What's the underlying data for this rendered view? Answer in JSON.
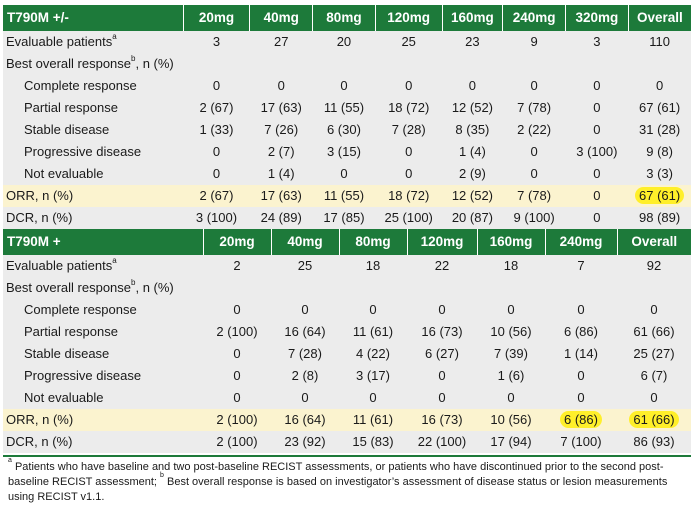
{
  "tables": [
    {
      "title": "T790M +/-",
      "doses": [
        "20mg",
        "40mg",
        "80mg",
        "120mg",
        "160mg",
        "240mg",
        "320mg",
        "Overall"
      ],
      "evaluable": {
        "label": "Evaluable patients",
        "note": "a",
        "values": [
          "3",
          "27",
          "20",
          "25",
          "23",
          "9",
          "3",
          "110"
        ]
      },
      "best_response": {
        "label_pre": "Best overall response",
        "note": "b",
        "label_post": ", n (%)"
      },
      "responses": [
        {
          "label": "Complete response",
          "values": [
            "0",
            "0",
            "0",
            "0",
            "0",
            "0",
            "0",
            "0"
          ]
        },
        {
          "label": "Partial response",
          "values": [
            "2 (67)",
            "17 (63)",
            "11 (55)",
            "18 (72)",
            "12 (52)",
            "7 (78)",
            "0",
            "67 (61)"
          ]
        },
        {
          "label": "Stable disease",
          "values": [
            "1 (33)",
            "7 (26)",
            "6 (30)",
            "7 (28)",
            "8 (35)",
            "2 (22)",
            "0",
            "31 (28)"
          ]
        },
        {
          "label": "Progressive disease",
          "values": [
            "0",
            "2 (7)",
            "3 (15)",
            "0",
            "1 (4)",
            "0",
            "3 (100)",
            "9 (8)"
          ]
        },
        {
          "label": "Not evaluable",
          "values": [
            "0",
            "1 (4)",
            "0",
            "0",
            "2 (9)",
            "0",
            "0",
            "3 (3)"
          ]
        }
      ],
      "orr": {
        "label": "ORR, n (%)",
        "values": [
          "2 (67)",
          "17 (63)",
          "11 (55)",
          "18 (72)",
          "12 (52)",
          "7 (78)",
          "0",
          "67 (61)"
        ],
        "highlighted": [
          false,
          false,
          false,
          false,
          false,
          false,
          false,
          true
        ]
      },
      "dcr": {
        "label": "DCR, n (%)",
        "values": [
          "3 (100)",
          "24 (89)",
          "17 (85)",
          "25 (100)",
          "20 (87)",
          "9 (100)",
          "0",
          "98 (89)"
        ]
      }
    },
    {
      "title": "T790M +",
      "doses": [
        "20mg",
        "40mg",
        "80mg",
        "120mg",
        "160mg",
        "240mg",
        "Overall"
      ],
      "evaluable": {
        "label": "Evaluable patients",
        "note": "a",
        "values": [
          "2",
          "25",
          "18",
          "22",
          "18",
          "7",
          "92"
        ]
      },
      "best_response": {
        "label_pre": "Best overall response",
        "note": "b",
        "label_post": ", n (%)"
      },
      "responses": [
        {
          "label": "Complete response",
          "values": [
            "0",
            "0",
            "0",
            "0",
            "0",
            "0",
            "0"
          ]
        },
        {
          "label": "Partial response",
          "values": [
            "2 (100)",
            "16 (64)",
            "11 (61)",
            "16 (73)",
            "10 (56)",
            "6 (86)",
            "61 (66)"
          ]
        },
        {
          "label": "Stable disease",
          "values": [
            "0",
            "7 (28)",
            "4 (22)",
            "6 (27)",
            "7 (39)",
            "1 (14)",
            "25 (27)"
          ]
        },
        {
          "label": "Progressive disease",
          "values": [
            "0",
            "2 (8)",
            "3 (17)",
            "0",
            "1 (6)",
            "0",
            "6 (7)"
          ]
        },
        {
          "label": "Not evaluable",
          "values": [
            "0",
            "0",
            "0",
            "0",
            "0",
            "0",
            "0"
          ]
        }
      ],
      "orr": {
        "label": "ORR, n (%)",
        "values": [
          "2 (100)",
          "16 (64)",
          "11 (61)",
          "16 (73)",
          "10 (56)",
          "6 (86)",
          "61 (66)"
        ],
        "highlighted": [
          false,
          false,
          false,
          false,
          false,
          true,
          true
        ]
      },
      "dcr": {
        "label": "DCR, n (%)",
        "values": [
          "2 (100)",
          "23 (92)",
          "15 (83)",
          "22 (100)",
          "17 (94)",
          "7 (100)",
          "86 (93)"
        ]
      }
    }
  ],
  "footnote": {
    "a_mark": "a",
    "a_text": " Patients who have baseline and two post-baseline RECIST assessments, or patients who have discontinued prior to the second post-baseline RECIST assessment; ",
    "b_mark": "b",
    "b_text": " Best overall response is based on investigator’s assessment of disease status or lesion measurements using RECIST v1.1."
  },
  "colors": {
    "header": "#1d7a3a",
    "shade": "#ececec",
    "orr_row": "#fbf3cf",
    "highlight": "#ffef2a"
  }
}
